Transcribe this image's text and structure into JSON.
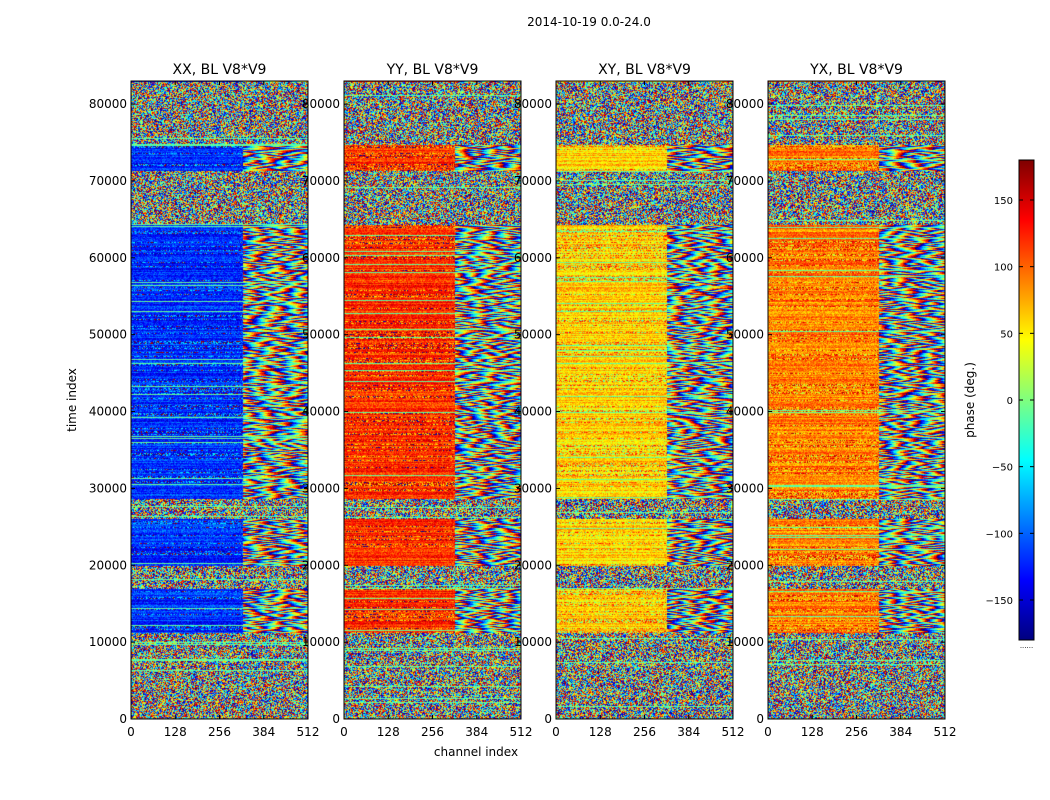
{
  "figure": {
    "suptitle": "2014-10-19 0.0-24.0"
  },
  "colors": {
    "jet": [
      "#00007f",
      "#0000ff",
      "#007fff",
      "#00ffff",
      "#7fff7f",
      "#ffff00",
      "#ff7f00",
      "#ff0000",
      "#7f0000"
    ]
  },
  "chart_data": [
    {
      "type": "heatmap",
      "title": "XX, BL V8*V9",
      "xlabel": "",
      "ylabel": "time index",
      "xlim": [
        0,
        512
      ],
      "ylim": [
        0,
        83000
      ],
      "xticks": [
        0,
        128,
        256,
        384,
        512
      ],
      "yticks": [
        0,
        10000,
        20000,
        30000,
        40000,
        50000,
        60000,
        70000,
        80000
      ],
      "ytick_labels": [
        "0",
        "10000",
        "20000",
        "30000",
        "40000",
        "50000",
        "60000",
        "70000",
        "80000"
      ],
      "dominant_phase_deg": -120,
      "channel_split": 325
    },
    {
      "type": "heatmap",
      "title": "YY, BL V8*V9",
      "xlabel": "channel index",
      "ylabel": "",
      "xlim": [
        0,
        512
      ],
      "ylim": [
        0,
        83000
      ],
      "xticks": [
        0,
        128,
        256,
        384,
        512
      ],
      "yticks": [
        0,
        10000,
        20000,
        30000,
        40000,
        50000,
        60000,
        70000,
        80000
      ],
      "ytick_labels": [
        "0",
        "10000",
        "20000",
        "30000",
        "40000",
        "50000",
        "60000",
        "70000",
        "80000"
      ],
      "dominant_phase_deg": 120,
      "channel_split": 320
    },
    {
      "type": "heatmap",
      "title": "XY, BL V8*V9",
      "xlabel": "",
      "ylabel": "",
      "xlim": [
        0,
        512
      ],
      "ylim": [
        0,
        83000
      ],
      "xticks": [
        0,
        128,
        256,
        384,
        512
      ],
      "yticks": [
        0,
        10000,
        20000,
        30000,
        40000,
        50000,
        60000,
        70000,
        80000
      ],
      "ytick_labels": [
        "0",
        "10000",
        "20000",
        "30000",
        "40000",
        "50000",
        "60000",
        "70000",
        "80000"
      ],
      "dominant_phase_deg": 60,
      "channel_split": 320
    },
    {
      "type": "heatmap",
      "title": "YX, BL V8*V9",
      "xlabel": "",
      "ylabel": "",
      "xlim": [
        0,
        512
      ],
      "ylim": [
        0,
        83000
      ],
      "xticks": [
        0,
        128,
        256,
        384,
        512
      ],
      "yticks": [
        0,
        10000,
        20000,
        30000,
        40000,
        50000,
        60000,
        70000,
        80000
      ],
      "ytick_labels": [
        "0",
        "10000",
        "20000",
        "30000",
        "40000",
        "50000",
        "60000",
        "70000",
        "80000"
      ],
      "dominant_phase_deg": 90,
      "channel_split": 320
    }
  ],
  "colorbar": {
    "label": "phase (deg.)",
    "range": [
      -180,
      180
    ],
    "ticks": [
      150,
      100,
      50,
      0,
      -50,
      -100,
      -150
    ],
    "tick_labels": [
      "150",
      "100",
      "50",
      "0",
      "−50",
      "−100",
      "−150"
    ],
    "bottom_text": "......"
  }
}
